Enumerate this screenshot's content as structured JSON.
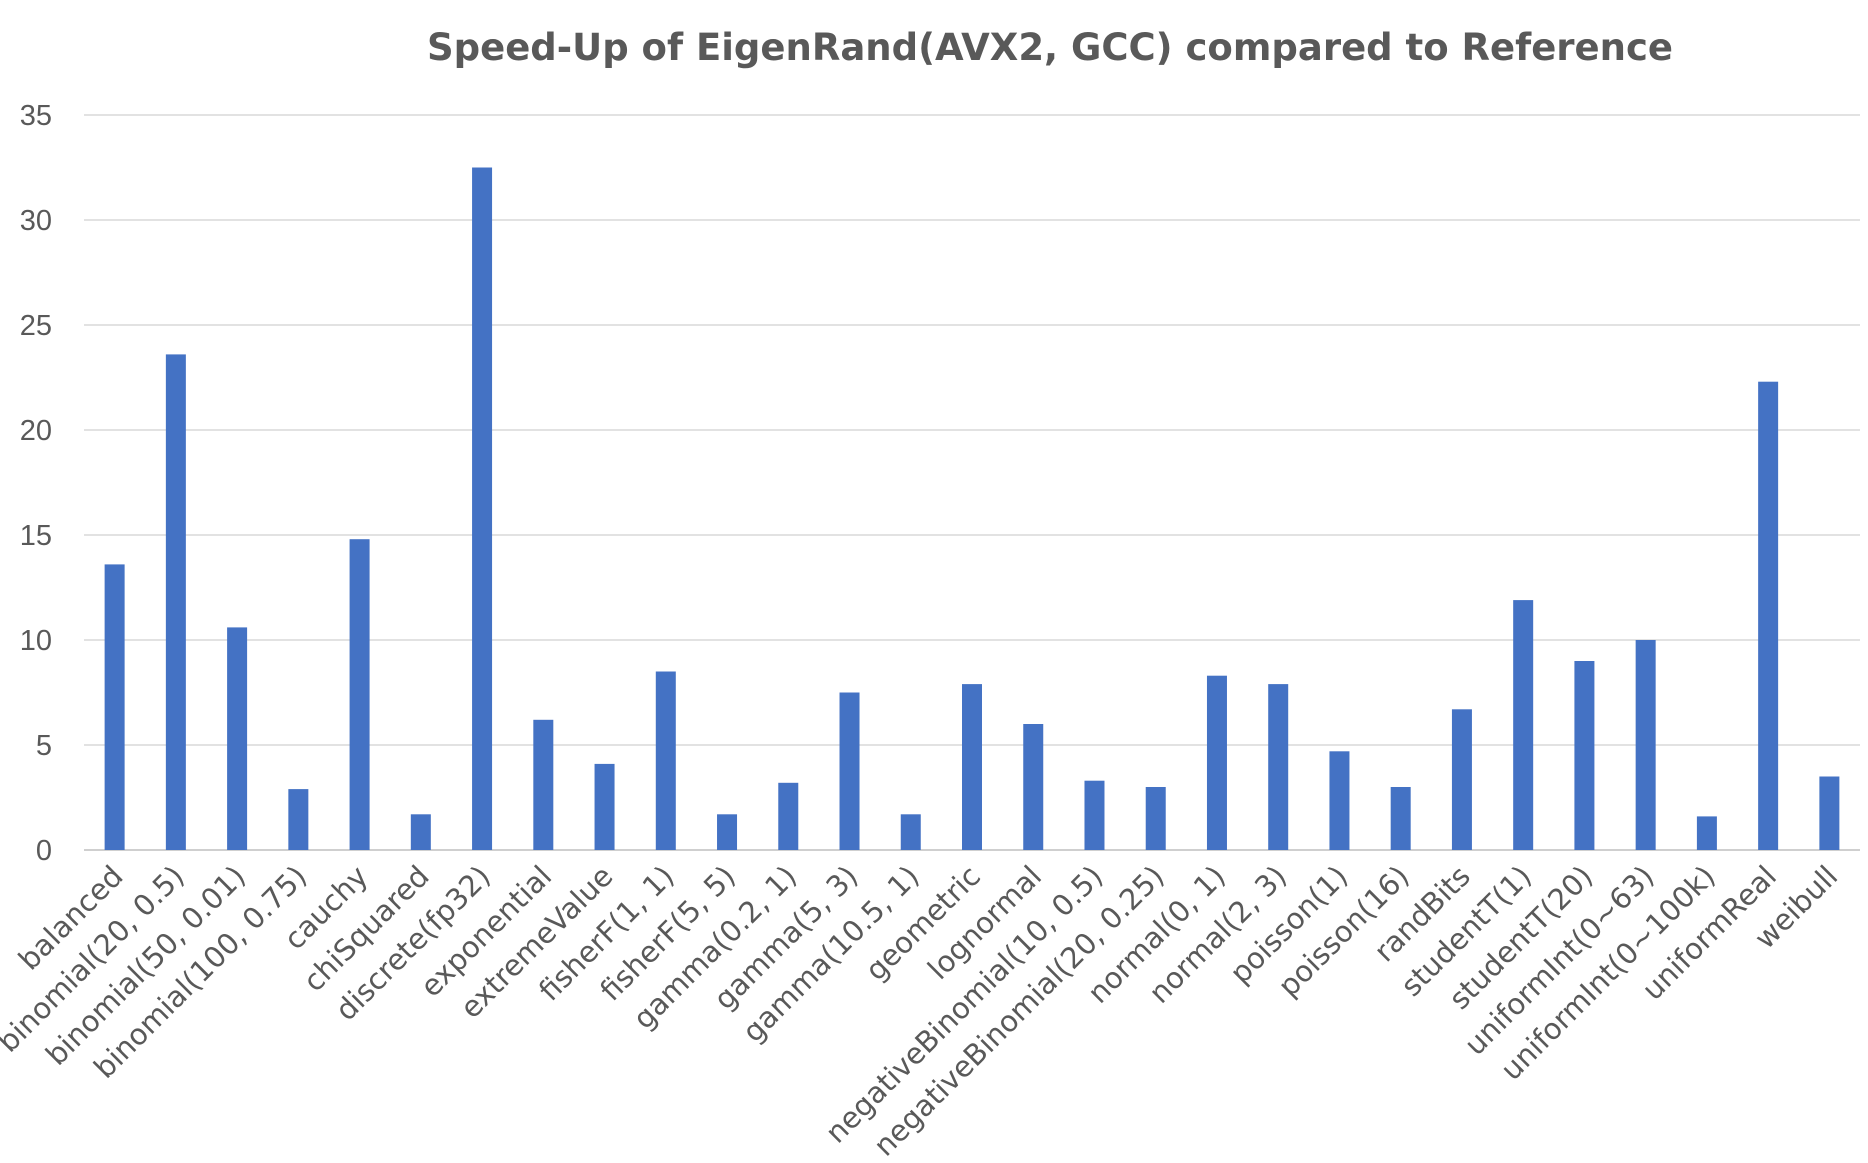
{
  "chart_data": {
    "type": "bar",
    "title": "Speed-Up of EigenRand(AVX2, GCC) compared to Reference",
    "xlabel": "",
    "ylabel": "",
    "ylim": [
      0,
      35
    ],
    "yticks": [
      "0",
      "5",
      "10",
      "15",
      "20",
      "25",
      "30",
      "35"
    ],
    "grid": true,
    "legend": "none",
    "bar_color": "#4472C4",
    "categories": [
      "balanced",
      "binomial(20, 0.5)",
      "binomial(50, 0.01)",
      "binomial(100, 0.75)",
      "cauchy",
      "chiSquared",
      "discrete(fp32)",
      "exponential",
      "extremeValue",
      "fisherF(1, 1)",
      "fisherF(5, 5)",
      "gamma(0.2, 1)",
      "gamma(5, 3)",
      "gamma(10.5, 1)",
      "geometric",
      "lognormal",
      "negativeBinomial(10, 0.5)",
      "negativeBinomial(20, 0.25)",
      "normal(0, 1)",
      "normal(2, 3)",
      "poisson(1)",
      "poisson(16)",
      "randBits",
      "studentT(1)",
      "studentT(20)",
      "uniformInt(0~63)",
      "uniformInt(0~100k)",
      "uniformReal",
      "weibull"
    ],
    "values": [
      13.6,
      23.6,
      10.6,
      2.9,
      14.8,
      1.7,
      32.5,
      6.2,
      4.1,
      8.5,
      1.7,
      3.2,
      7.5,
      1.7,
      7.9,
      6.0,
      3.3,
      3.0,
      8.3,
      7.9,
      4.7,
      3.0,
      6.7,
      11.9,
      9.0,
      10.0,
      1.6,
      22.3,
      3.5
    ]
  }
}
